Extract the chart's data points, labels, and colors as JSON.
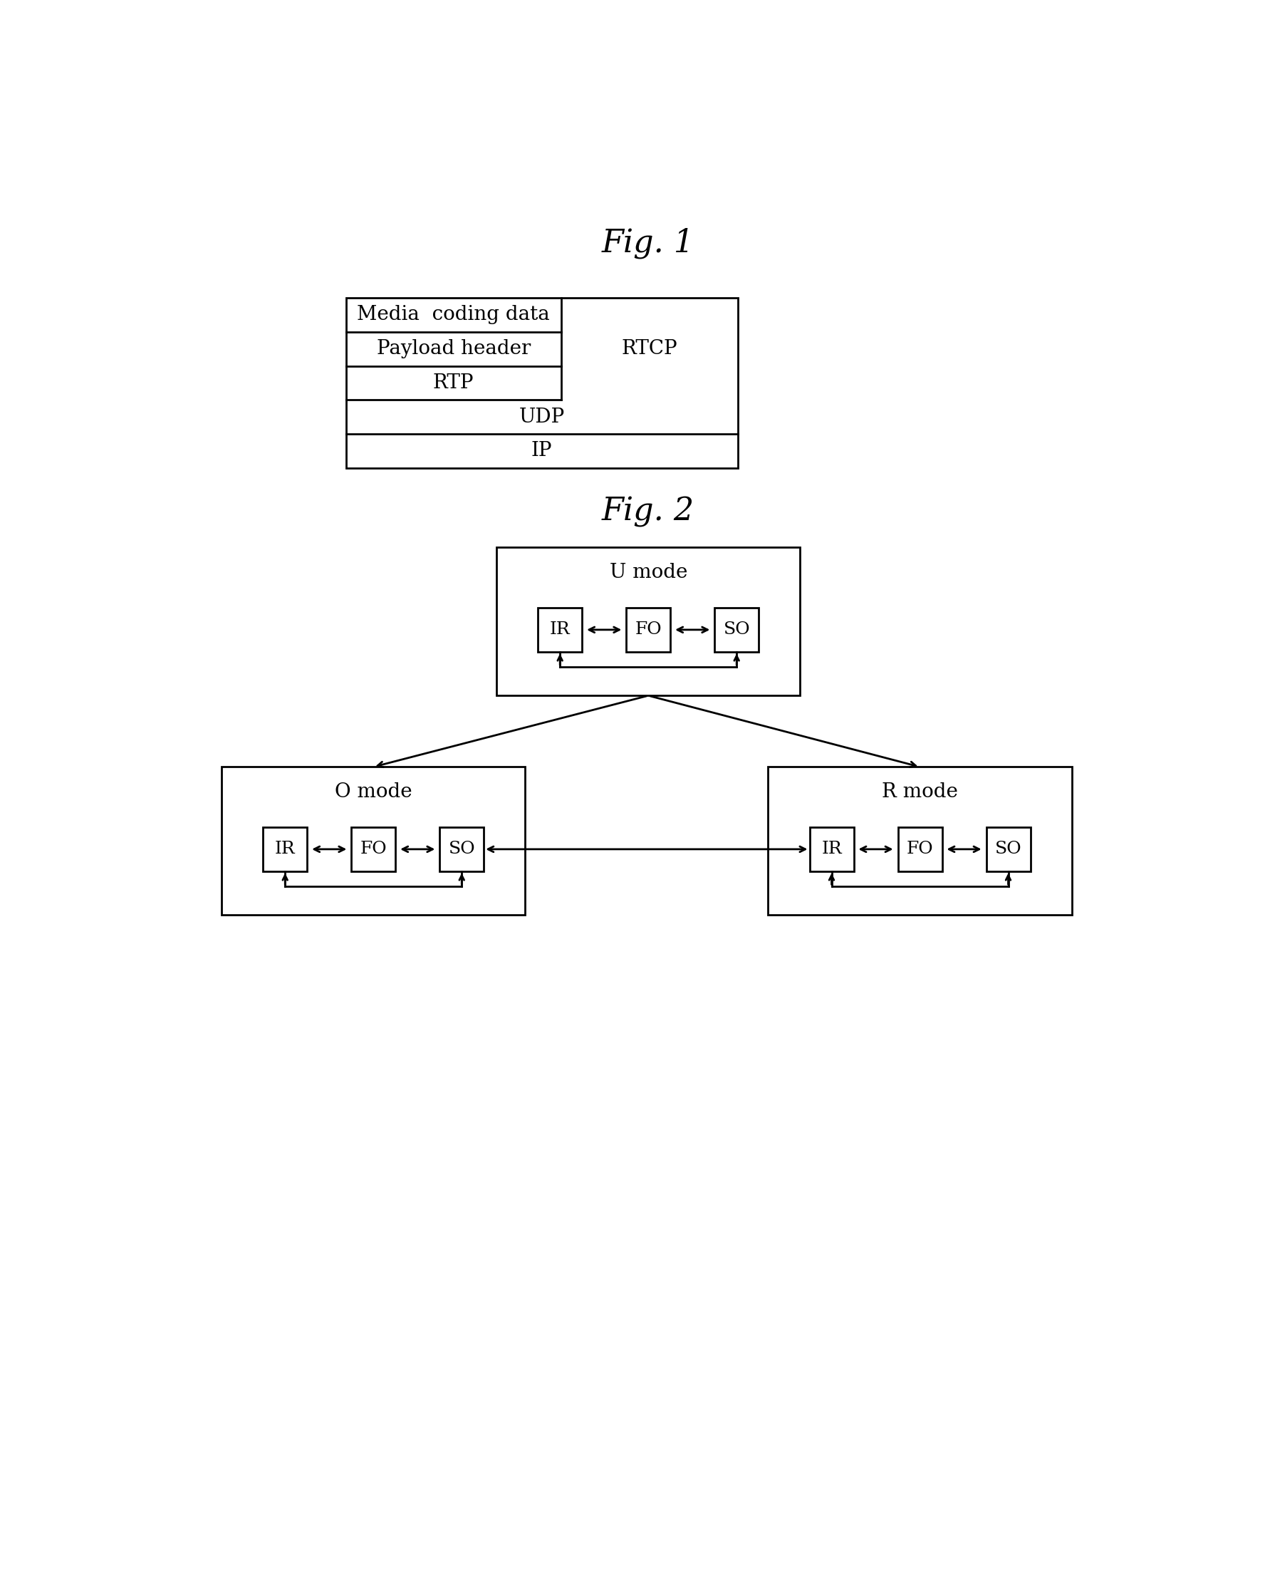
{
  "fig1_title": "Fig. 1",
  "fig2_title": "Fig. 2",
  "background_color": "#ffffff",
  "box_edge_color": "#000000",
  "text_color": "#000000",
  "font_family": "serif",
  "fig1_left_labels": [
    "Media  coding data",
    "Payload header",
    "RTP"
  ],
  "fig1_full_labels": [
    "UDP",
    "IP"
  ],
  "fig1_rtcp_label": "RTCP",
  "mode_labels": [
    "U mode",
    "O mode",
    "R mode"
  ],
  "box_labels": [
    "IR",
    "FO",
    "SO"
  ]
}
